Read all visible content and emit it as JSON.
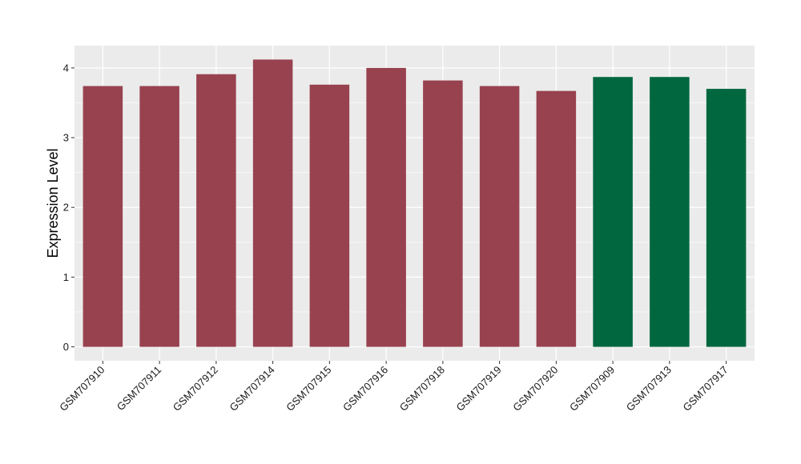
{
  "chart_data": {
    "type": "bar",
    "title": "",
    "xlabel": "",
    "ylabel": "Expression Level",
    "ylim": [
      -0.2,
      4.32
    ],
    "yticks": [
      0,
      1,
      2,
      3,
      4
    ],
    "grid": true,
    "legend": "none",
    "categories": [
      "GSM707910",
      "GSM707911",
      "GSM707912",
      "GSM707914",
      "GSM707915",
      "GSM707916",
      "GSM707918",
      "GSM707919",
      "GSM707920",
      "GSM707909",
      "GSM707913",
      "GSM707917"
    ],
    "values": [
      3.74,
      3.74,
      3.91,
      4.12,
      3.76,
      4.0,
      3.82,
      3.74,
      3.67,
      3.87,
      3.87,
      3.7
    ],
    "groups": [
      0,
      0,
      0,
      0,
      0,
      0,
      0,
      0,
      0,
      1,
      1,
      1
    ],
    "group_colors": [
      "#98424f",
      "#00673f"
    ],
    "panel_color": "#ebebeb",
    "grid_color": "#ffffff"
  }
}
